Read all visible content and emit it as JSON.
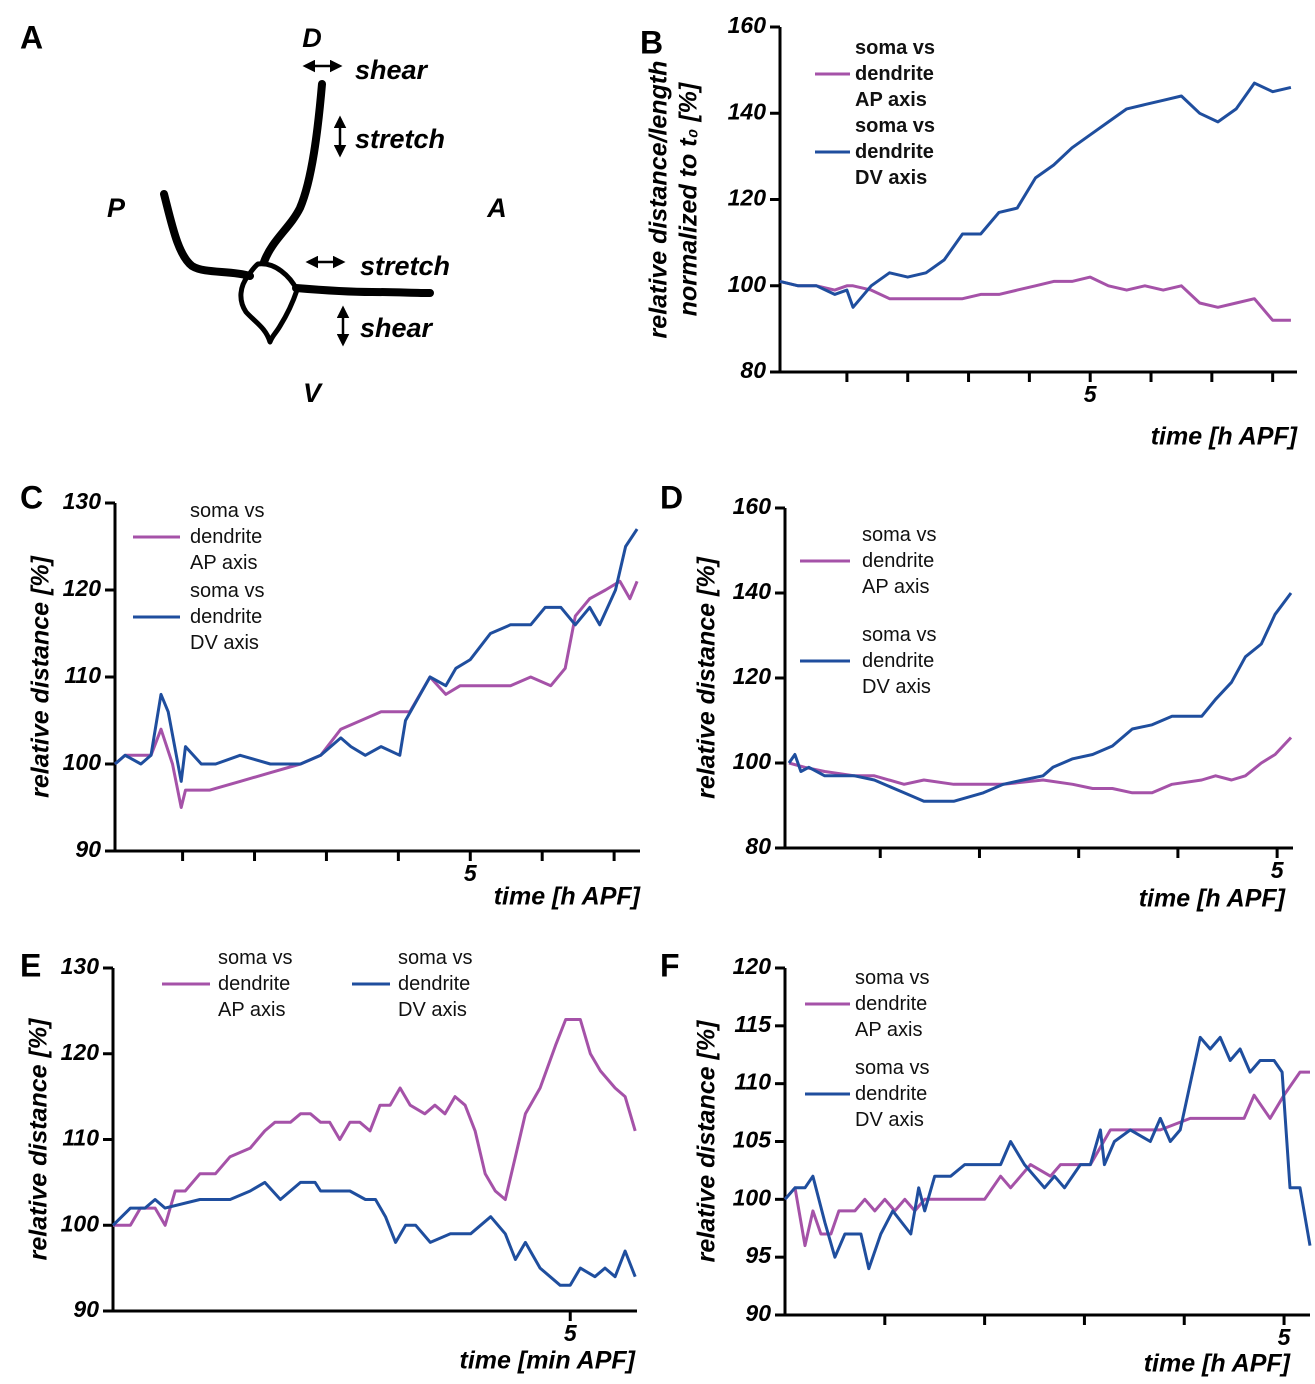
{
  "diagram": {
    "panel_label": "A",
    "labels": [
      "D",
      "P",
      "A",
      "V",
      "shear",
      "stretch",
      "stretch",
      "shear"
    ]
  },
  "chart_data": [
    {
      "type": "line",
      "panel_label": "B",
      "ylabel": [
        "relative distance/length",
        "normalized to t₀ [%]"
      ],
      "xlabel": "time [h APF]",
      "xlim": [
        2.45,
        6.7
      ],
      "ylim": [
        80,
        160
      ],
      "yticks": [
        80,
        100,
        120,
        140,
        160
      ],
      "xticks": [
        {
          "value": 3,
          "label": null
        },
        {
          "value": 3.5,
          "label": null
        },
        {
          "value": 4,
          "label": null
        },
        {
          "value": 4.5,
          "label": null
        },
        5,
        {
          "value": 5.5,
          "label": null
        },
        {
          "value": 6,
          "label": null
        },
        {
          "value": 6.5,
          "label": null
        }
      ],
      "legend": "upper left",
      "legend_bold": true,
      "series": [
        {
          "name": "soma vs dendrite AP axis",
          "color": "#a552a8",
          "x": [
            2.45,
            2.6,
            2.75,
            2.9,
            3.0,
            3.05,
            3.2,
            3.35,
            3.5,
            3.65,
            3.8,
            3.95,
            4.1,
            4.25,
            4.4,
            4.55,
            4.7,
            4.85,
            5.0,
            5.15,
            5.3,
            5.45,
            5.6,
            5.75,
            5.9,
            6.05,
            6.2,
            6.35,
            6.5,
            6.65
          ],
          "values": [
            101,
            100,
            100,
            99,
            100,
            100,
            99,
            97,
            97,
            97,
            97,
            97,
            98,
            98,
            99,
            100,
            101,
            101,
            102,
            100,
            99,
            100,
            99,
            100,
            96,
            95,
            96,
            97,
            92,
            92
          ]
        },
        {
          "name": "soma vs dendrite DV axis",
          "color": "#1f4e9e",
          "x": [
            2.45,
            2.6,
            2.75,
            2.9,
            3.0,
            3.05,
            3.2,
            3.35,
            3.5,
            3.65,
            3.8,
            3.95,
            4.1,
            4.25,
            4.4,
            4.55,
            4.7,
            4.85,
            5.0,
            5.15,
            5.3,
            5.45,
            5.6,
            5.75,
            5.9,
            6.05,
            6.2,
            6.35,
            6.5,
            6.65
          ],
          "values": [
            101,
            100,
            100,
            98,
            99,
            95,
            100,
            103,
            102,
            103,
            106,
            112,
            112,
            117,
            118,
            125,
            128,
            132,
            135,
            138,
            141,
            142,
            143,
            144,
            140,
            138,
            141,
            147,
            145,
            146
          ]
        }
      ]
    },
    {
      "type": "line",
      "panel_label": "C",
      "ylabel": "relative distance [%]",
      "xlabel": "time [h APF]",
      "xlim": [
        2.53,
        6.18
      ],
      "ylim": [
        90,
        130
      ],
      "yticks": [
        90,
        100,
        110,
        120,
        130
      ],
      "xticks": [
        {
          "value": 3,
          "label": null
        },
        {
          "value": 3.5,
          "label": null
        },
        {
          "value": 4,
          "label": null
        },
        {
          "value": 4.5,
          "label": null
        },
        5,
        {
          "value": 5.5,
          "label": null
        },
        {
          "value": 6,
          "label": null
        }
      ],
      "legend": "upper left",
      "legend_bold": false,
      "series": [
        {
          "name": "soma vs dendrite AP axis",
          "color": "#a552a8",
          "x": [
            2.53,
            2.6,
            2.78,
            2.85,
            2.93,
            2.99,
            3.02,
            3.19,
            3.4,
            3.61,
            3.82,
            3.96,
            4.1,
            4.24,
            4.38,
            4.58,
            4.72,
            4.83,
            4.93,
            5.14,
            5.28,
            5.42,
            5.56,
            5.66,
            5.73,
            5.83,
            5.94,
            6.04,
            6.11,
            6.16
          ],
          "values": [
            100,
            101,
            101,
            104,
            100,
            95,
            97,
            97,
            98,
            99,
            100,
            101,
            104,
            105,
            106,
            106,
            110,
            108,
            109,
            109,
            109,
            110,
            109,
            111,
            117,
            119,
            120,
            121,
            119,
            121
          ]
        },
        {
          "name": "soma vs dendrite DV axis",
          "color": "#1f4e9e",
          "x": [
            2.53,
            2.6,
            2.71,
            2.78,
            2.85,
            2.9,
            2.99,
            3.02,
            3.13,
            3.23,
            3.4,
            3.61,
            3.82,
            3.96,
            4.1,
            4.17,
            4.27,
            4.38,
            4.51,
            4.55,
            4.72,
            4.83,
            4.9,
            5,
            5.14,
            5.28,
            5.42,
            5.52,
            5.63,
            5.73,
            5.83,
            5.9,
            6.01,
            6.08,
            6.16
          ],
          "values": [
            100,
            101,
            100,
            101,
            108,
            106,
            98,
            102,
            100,
            100,
            101,
            100,
            100,
            101,
            103,
            102,
            101,
            102,
            101,
            105,
            110,
            109,
            111,
            112,
            115,
            116,
            116,
            118,
            118,
            116,
            118,
            116,
            120,
            125,
            127
          ]
        }
      ]
    },
    {
      "type": "line",
      "panel_label": "D",
      "ylabel": "relative distance [%]",
      "xlabel": "time [h APF]",
      "xlim": [
        2.52,
        5.08
      ],
      "ylim": [
        80,
        160
      ],
      "yticks": [
        80,
        100,
        120,
        140,
        160
      ],
      "xticks": [
        {
          "value": 3,
          "label": null
        },
        {
          "value": 3.5,
          "label": null
        },
        {
          "value": 4,
          "label": null
        },
        {
          "value": 4.5,
          "label": null
        },
        5
      ],
      "legend": "upper left",
      "legend_bold": false,
      "series": [
        {
          "name": "soma vs dendrite AP axis",
          "color": "#a552a8",
          "x": [
            2.54,
            2.62,
            2.72,
            2.87,
            2.97,
            3.12,
            3.22,
            3.37,
            3.52,
            3.62,
            3.82,
            3.97,
            4.07,
            4.17,
            4.27,
            4.37,
            4.47,
            4.62,
            4.69,
            4.77,
            4.84,
            4.92,
            4.99,
            5.07
          ],
          "values": [
            100,
            99,
            98,
            97,
            97,
            95,
            96,
            95,
            95,
            95,
            96,
            95,
            94,
            94,
            93,
            93,
            95,
            96,
            97,
            96,
            97,
            100,
            102,
            106
          ]
        },
        {
          "name": "soma vs dendrite DV axis",
          "color": "#1f4e9e",
          "x": [
            2.54,
            2.57,
            2.6,
            2.64,
            2.72,
            2.87,
            2.97,
            3.12,
            3.22,
            3.37,
            3.52,
            3.62,
            3.72,
            3.82,
            3.87,
            3.97,
            4.07,
            4.17,
            4.27,
            4.37,
            4.47,
            4.62,
            4.69,
            4.77,
            4.84,
            4.92,
            4.99,
            5.07
          ],
          "values": [
            100,
            102,
            98,
            99,
            97,
            97,
            96,
            93,
            91,
            91,
            93,
            95,
            96,
            97,
            99,
            101,
            102,
            104,
            108,
            109,
            111,
            111,
            115,
            119,
            125,
            128,
            135,
            140
          ]
        }
      ]
    },
    {
      "type": "line",
      "panel_label": "E",
      "ylabel": "relative distance [%]",
      "xlabel": "time [min APF]",
      "xlim": [
        0,
        5.73
      ],
      "ylim": [
        90,
        130
      ],
      "yticks": [
        90,
        100,
        110,
        120,
        130
      ],
      "xticks": [
        5
      ],
      "legend": "upper left",
      "legend_bold": false,
      "series": [
        {
          "name": "soma vs dendrite AP axis",
          "color": "#a552a8",
          "x": [
            0,
            0.19,
            0.3,
            0.46,
            0.57,
            0.68,
            0.79,
            0.95,
            1.12,
            1.28,
            1.5,
            1.66,
            1.77,
            1.94,
            2.05,
            2.16,
            2.27,
            2.37,
            2.48,
            2.59,
            2.7,
            2.81,
            2.92,
            3.03,
            3.14,
            3.25,
            3.41,
            3.52,
            3.63,
            3.74,
            3.85,
            3.96,
            4.07,
            4.18,
            4.29,
            4.4,
            4.51,
            4.67,
            4.84,
            4.95,
            5.11,
            5.22,
            5.33,
            5.49,
            5.6,
            5.71
          ],
          "values": [
            100,
            100,
            102,
            102,
            100,
            104,
            104,
            106,
            106,
            108,
            109,
            111,
            112,
            112,
            113,
            113,
            112,
            112,
            110,
            112,
            112,
            111,
            114,
            114,
            116,
            114,
            113,
            114,
            113,
            115,
            114,
            111,
            106,
            104,
            103,
            108,
            113,
            116,
            121,
            124,
            124,
            120,
            118,
            116,
            115,
            111
          ]
        },
        {
          "name": "soma vs dendrite DV axis",
          "color": "#1f4e9e",
          "x": [
            0,
            0.19,
            0.35,
            0.46,
            0.57,
            0.95,
            1.28,
            1.5,
            1.66,
            1.83,
            2.05,
            2.21,
            2.27,
            2.48,
            2.59,
            2.76,
            2.87,
            2.98,
            3.09,
            3.2,
            3.31,
            3.47,
            3.69,
            3.91,
            4.13,
            4.29,
            4.4,
            4.51,
            4.67,
            4.89,
            5,
            5.11,
            5.27,
            5.38,
            5.49,
            5.6,
            5.71
          ],
          "values": [
            100,
            102,
            102,
            103,
            102,
            103,
            103,
            104,
            105,
            103,
            105,
            105,
            104,
            104,
            104,
            103,
            103,
            101,
            98,
            100,
            100,
            98,
            99,
            99,
            101,
            99,
            96,
            98,
            95,
            93,
            93,
            95,
            94,
            95,
            94,
            97,
            94
          ]
        }
      ]
    },
    {
      "type": "line",
      "panel_label": "F",
      "ylabel": "relative distance [%]",
      "xlabel": "time [h APF]",
      "xlim": [
        2.5,
        5.13
      ],
      "ylim": [
        90,
        120
      ],
      "yticks": [
        90,
        95,
        100,
        105,
        110,
        115,
        120
      ],
      "xticks": [
        {
          "value": 3,
          "label": null
        },
        {
          "value": 3.5,
          "label": null
        },
        {
          "value": 4,
          "label": null
        },
        {
          "value": 4.5,
          "label": null
        },
        5
      ],
      "legend": "upper left",
      "legend_bold": false,
      "series": [
        {
          "name": "soma vs dendrite AP axis",
          "color": "#a552a8",
          "x": [
            2.5,
            2.55,
            2.6,
            2.64,
            2.68,
            2.73,
            2.77,
            2.85,
            2.9,
            2.95,
            3,
            3.05,
            3.1,
            3.15,
            3.2,
            3.5,
            3.58,
            3.63,
            3.68,
            3.73,
            3.83,
            3.88,
            4.03,
            4.13,
            4.38,
            4.53,
            4.8,
            4.85,
            4.93,
            5,
            5.08,
            5.13
          ],
          "values": [
            100,
            101,
            96,
            99,
            97,
            97,
            99,
            99,
            100,
            99,
            100,
            99,
            100,
            99,
            100,
            100,
            102,
            101,
            102,
            103,
            102,
            103,
            103,
            106,
            106,
            107,
            107,
            109,
            107,
            109,
            111,
            111
          ]
        },
        {
          "name": "soma vs dendrite DV axis",
          "color": "#1f4e9e",
          "x": [
            2.5,
            2.55,
            2.6,
            2.64,
            2.7,
            2.75,
            2.8,
            2.88,
            2.92,
            2.98,
            3.04,
            3.13,
            3.17,
            3.2,
            3.25,
            3.33,
            3.4,
            3.53,
            3.58,
            3.63,
            3.7,
            3.8,
            3.85,
            3.9,
            3.98,
            4.03,
            4.08,
            4.1,
            4.15,
            4.23,
            4.33,
            4.38,
            4.43,
            4.48,
            4.53,
            4.58,
            4.63,
            4.68,
            4.73,
            4.78,
            4.83,
            4.88,
            4.95,
            4.99,
            5.03,
            5.08,
            5.13
          ],
          "values": [
            100,
            101,
            101,
            102,
            98,
            95,
            97,
            97,
            94,
            97,
            99,
            97,
            101,
            99,
            102,
            102,
            103,
            103,
            103,
            105,
            103,
            101,
            102,
            101,
            103,
            103,
            106,
            103,
            105,
            106,
            105,
            107,
            105,
            106,
            110,
            114,
            113,
            114,
            112,
            113,
            111,
            112,
            112,
            111,
            101,
            101,
            96
          ]
        }
      ]
    }
  ]
}
